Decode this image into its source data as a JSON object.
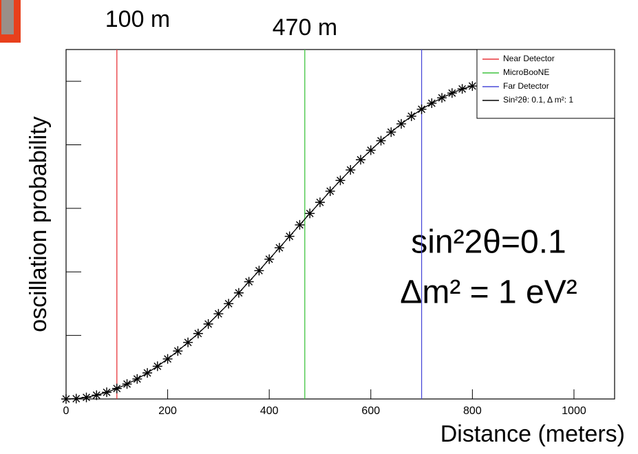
{
  "chart_data": {
    "type": "scatter-line",
    "x_label": "Distance (meters)",
    "y_label": "oscillation probability",
    "annotations": [
      "100 m",
      "470 m",
      "sin²2θ=0.1",
      "Δm² = 1 eV²"
    ],
    "xlim": [
      0,
      1080
    ],
    "xticks": [
      0,
      200,
      400,
      600,
      800,
      1000
    ],
    "ylim": [
      0,
      0.11
    ],
    "yticks": [
      0,
      0.02,
      0.04,
      0.06,
      0.08,
      0.1
    ],
    "markers": [
      {
        "name": "Near Detector",
        "color": "#e8353a",
        "x": 100
      },
      {
        "name": "MicroBooNE",
        "color": "#3ec43e",
        "x": 470
      },
      {
        "name": "Far Detector",
        "color": "#4a4ad8",
        "x": 700
      }
    ],
    "series": [
      {
        "name": "Sin²2θ: 0.1, Δ m²: 1",
        "color": "#000000",
        "x": [
          0,
          20,
          40,
          60,
          80,
          100,
          120,
          140,
          160,
          180,
          200,
          220,
          240,
          260,
          280,
          300,
          320,
          340,
          360,
          380,
          400,
          420,
          440,
          460,
          480,
          500,
          520,
          540,
          560,
          580,
          600,
          620,
          640,
          660,
          680,
          700,
          720,
          740,
          760,
          780,
          800
        ],
        "values": [
          0,
          0.0001,
          0.0005,
          0.0012,
          0.0021,
          0.0033,
          0.0047,
          0.0063,
          0.0082,
          0.0103,
          0.0126,
          0.0151,
          0.0178,
          0.0206,
          0.0236,
          0.0268,
          0.03,
          0.0334,
          0.0369,
          0.0404,
          0.044,
          0.0476,
          0.0512,
          0.0548,
          0.0584,
          0.0619,
          0.0654,
          0.0688,
          0.0721,
          0.0753,
          0.0783,
          0.0813,
          0.084,
          0.0866,
          0.089,
          0.0912,
          0.0931,
          0.0948,
          0.0963,
          0.0976,
          0.0985
        ]
      }
    ]
  }
}
